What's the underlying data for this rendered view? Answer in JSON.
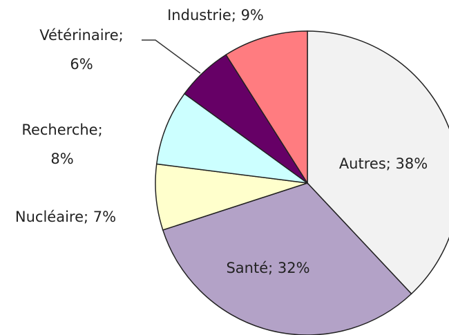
{
  "chart_data": {
    "type": "pie",
    "values": [
      38,
      32,
      7,
      8,
      6,
      9
    ],
    "value_labels": [
      "Autres; 38%",
      "Santé; 32%",
      "Nucléaire; 7%",
      "Recherche; 8%",
      "Vétérinaire; 6%",
      "Industrie; 9%"
    ],
    "colors": [
      "#f2f2f2",
      "#b3a2c7",
      "#ffffcc",
      "#ccffff",
      "#660066",
      "#ff7c80"
    ]
  }
}
